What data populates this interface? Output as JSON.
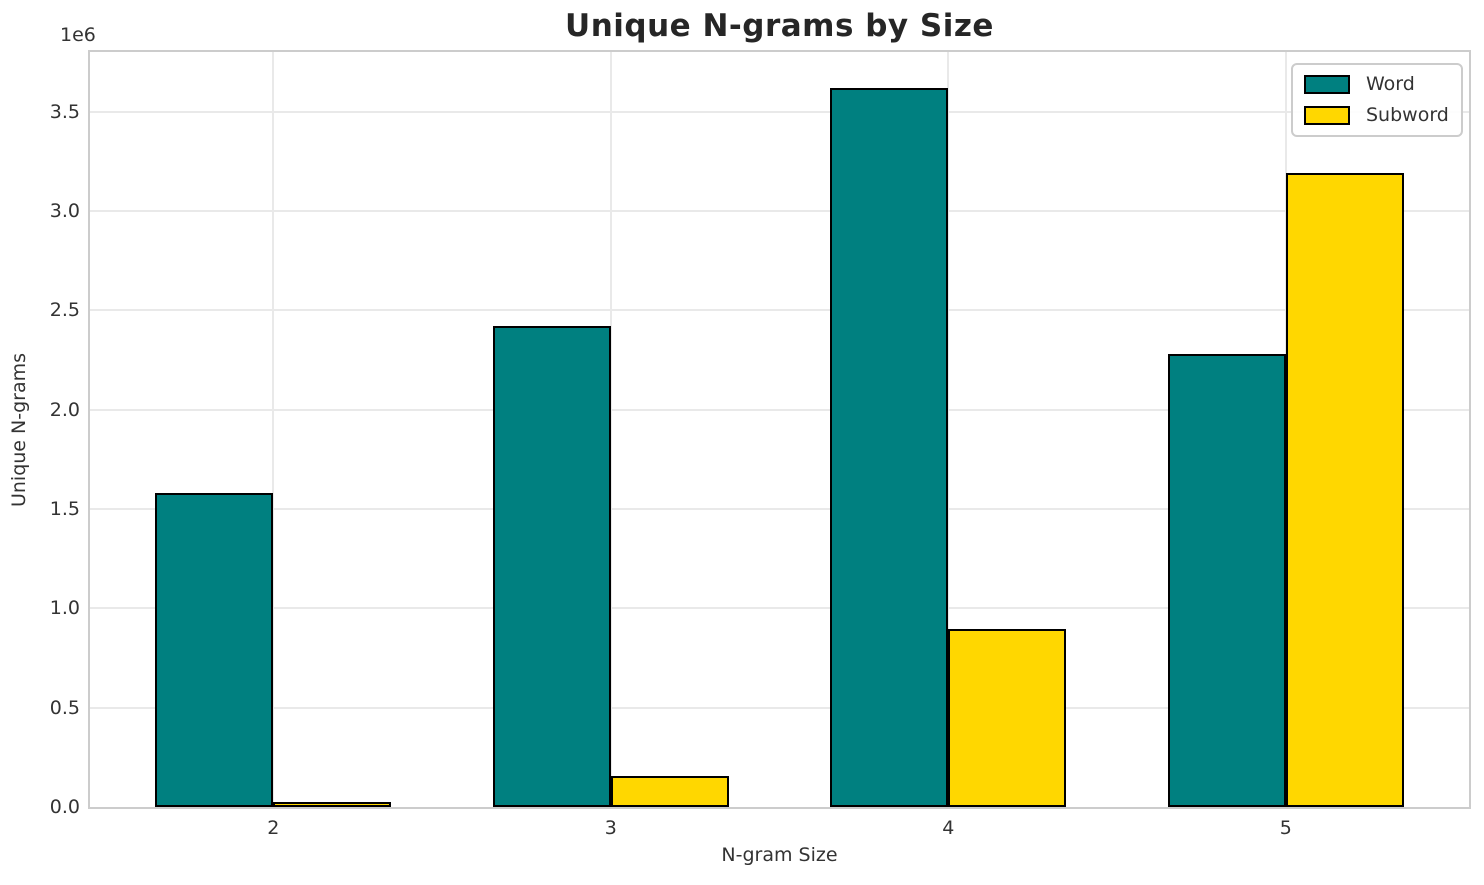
{
  "chart_data": {
    "type": "bar",
    "title": "Unique N-grams by Size",
    "xlabel": "N-gram Size",
    "ylabel": "Unique N-grams",
    "y_offset_text": "1e6",
    "categories": [
      "2",
      "3",
      "4",
      "5"
    ],
    "series": [
      {
        "name": "Word",
        "color": "#008080",
        "values": [
          1580000,
          2420000,
          3620000,
          2280000
        ]
      },
      {
        "name": "Subword",
        "color": "#FFD700",
        "values": [
          25000,
          155000,
          895000,
          3190000
        ]
      }
    ],
    "bar_edge_color": "#000000",
    "ylim": [
      0,
      3800000
    ],
    "yticks": [
      0,
      500000,
      1000000,
      1500000,
      2000000,
      2500000,
      3000000,
      3500000
    ],
    "ytick_labels": [
      "0.0",
      "0.5",
      "1.0",
      "1.5",
      "2.0",
      "2.5",
      "3.0",
      "3.5"
    ],
    "grid": true,
    "gridline_color": "#e9e9e9",
    "spine_color": "#cccccc",
    "background_color": "#ffffff",
    "legend_position": "upper right"
  }
}
